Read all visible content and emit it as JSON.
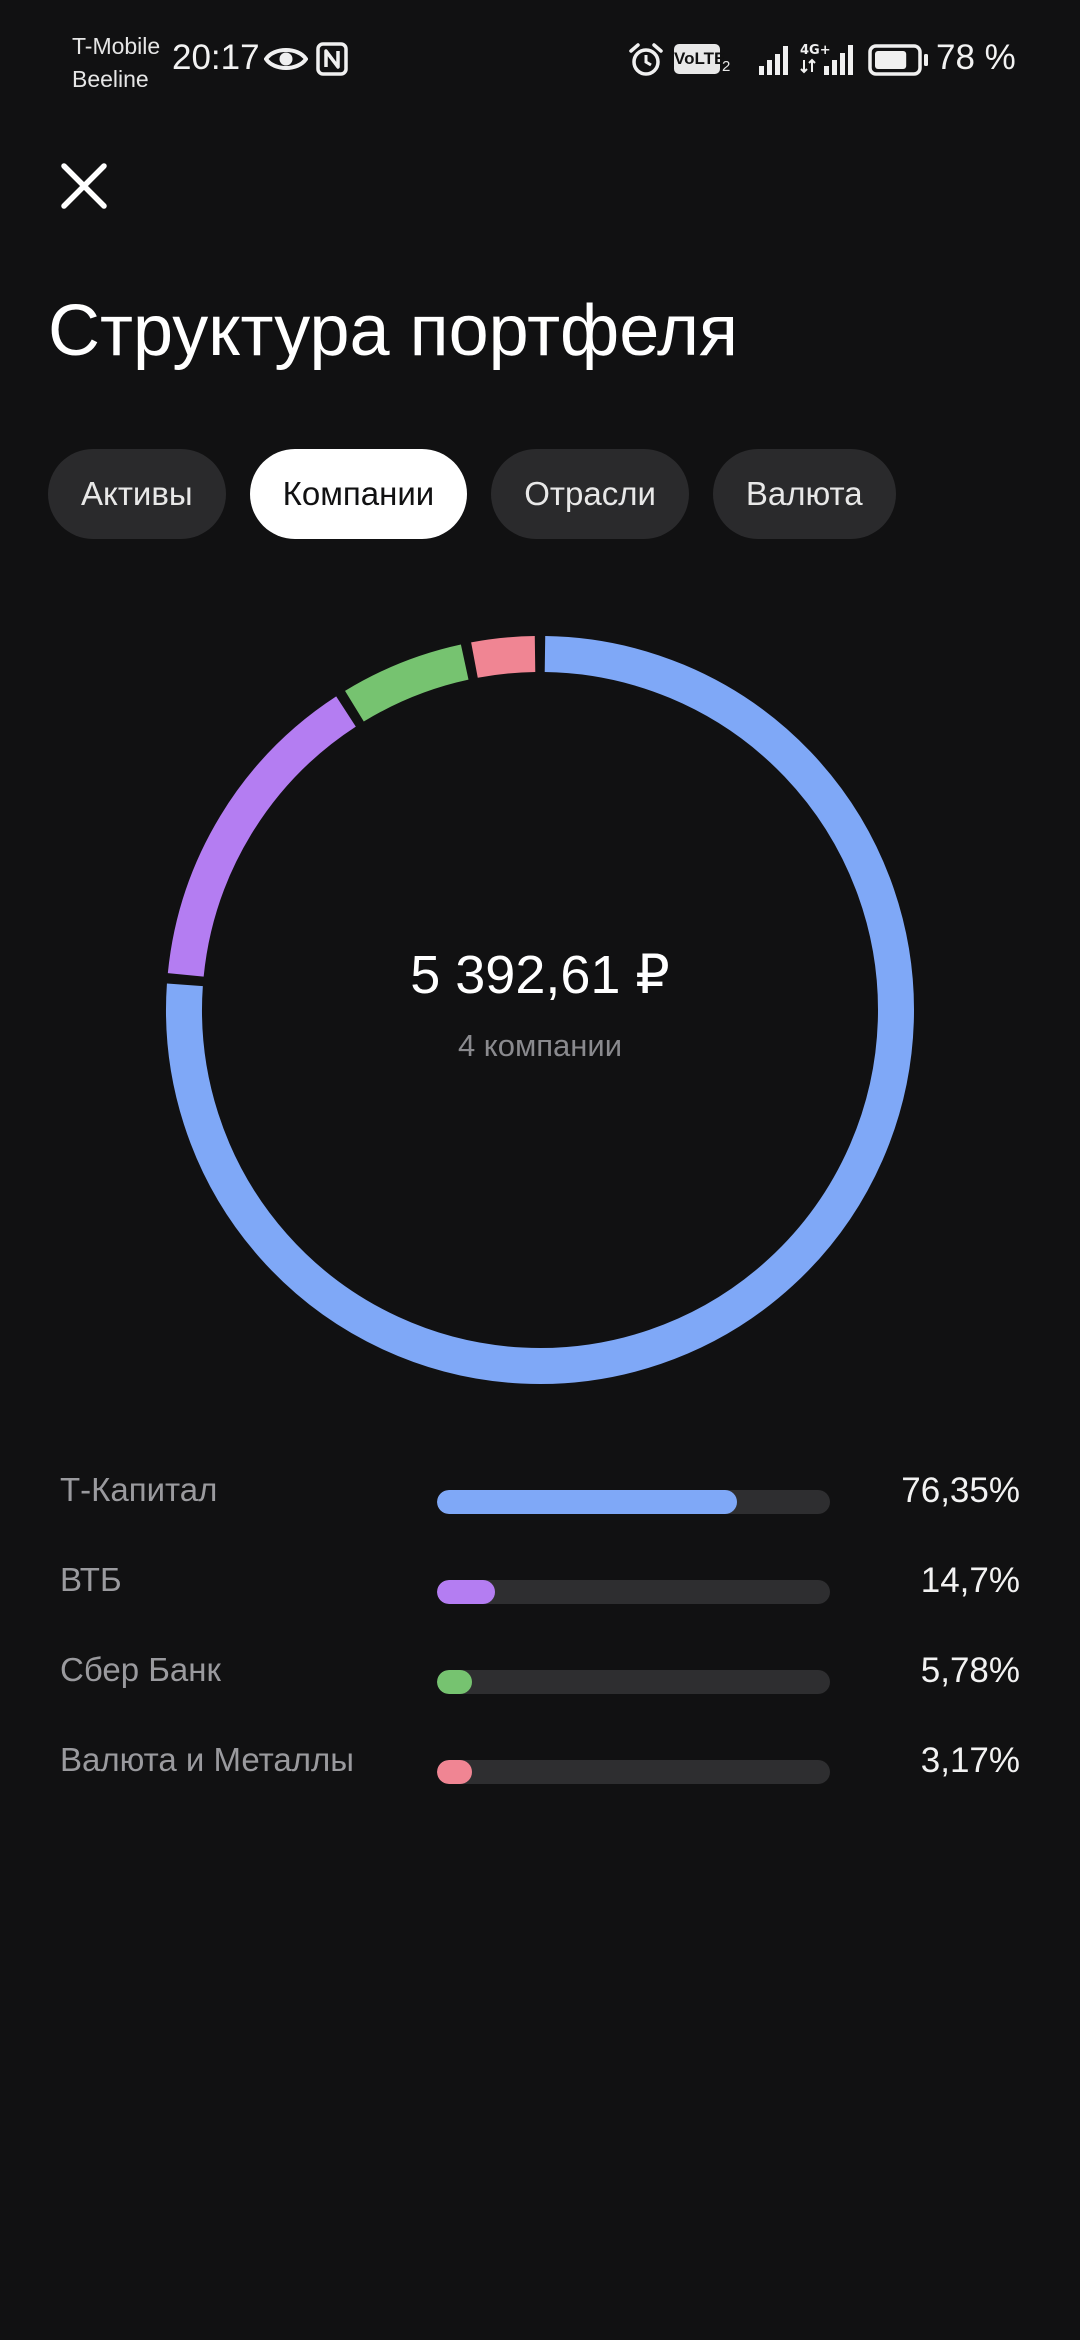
{
  "status_bar": {
    "carrier_1": "T-Mobile",
    "carrier_2": "Beeline",
    "time": "20:17",
    "volte": "VoLTE",
    "volte_sim": "2",
    "network": "4G+",
    "battery": "78 %",
    "battery_level": 0.78,
    "icons": [
      "eye-icon",
      "nfc-icon",
      "alarm-icon",
      "signal-icon",
      "battery-icon"
    ]
  },
  "header": {
    "title": "Структура портфеля"
  },
  "tabs": [
    {
      "label": "Активы",
      "active": false
    },
    {
      "label": "Компании",
      "active": true
    },
    {
      "label": "Отрасли",
      "active": false
    },
    {
      "label": "Валюта",
      "active": false
    }
  ],
  "summary": {
    "total": "5 392,61 ₽",
    "count": "4 компании"
  },
  "chart_data": {
    "type": "pie",
    "style": "donut",
    "categories": [
      "Т-Капитал",
      "ВТБ",
      "Сбер Банк",
      "Валюта и Металлы"
    ],
    "values": [
      76.35,
      14.7,
      5.78,
      3.17
    ],
    "labels": [
      "76,35%",
      "14,7%",
      "5,78%",
      "3,17%"
    ],
    "colors": [
      "#7fa8f7",
      "#b47df2",
      "#76c370",
      "#f08593"
    ]
  }
}
